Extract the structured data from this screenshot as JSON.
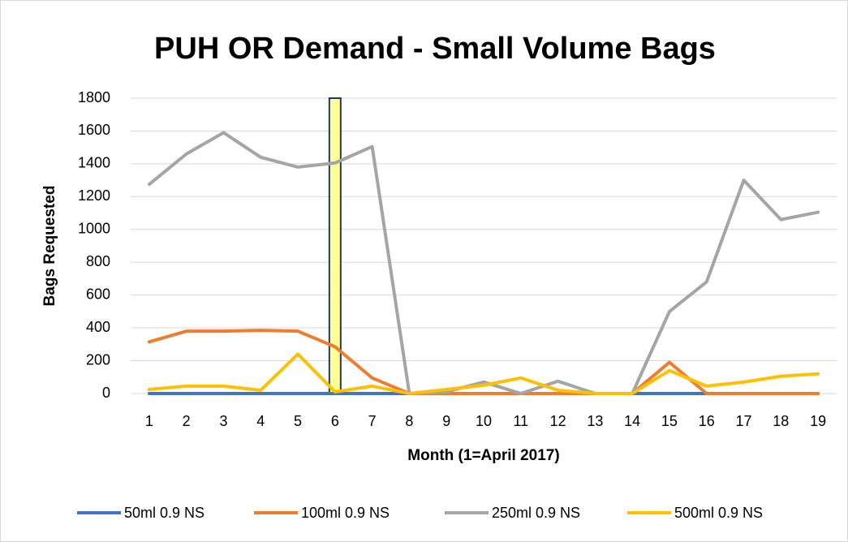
{
  "chart_data": {
    "type": "line",
    "title": "PUH OR Demand - Small Volume Bags",
    "x_label": "Month (1=April 2017)",
    "y_label": "Bags Requested",
    "categories": [
      "1",
      "2",
      "3",
      "4",
      "5",
      "6",
      "7",
      "8",
      "9",
      "10",
      "11",
      "12",
      "13",
      "14",
      "15",
      "16",
      "17",
      "18",
      "19"
    ],
    "series": [
      {
        "name": "50ml 0.9 NS",
        "color": "#4472c4",
        "values": [
          0,
          0,
          0,
          0,
          0,
          0,
          0,
          0,
          0,
          0,
          0,
          0,
          0,
          0,
          0,
          0,
          0,
          0,
          0
        ]
      },
      {
        "name": "100ml 0.9 NS",
        "color": "#ed7d31",
        "values": [
          315,
          380,
          380,
          385,
          380,
          285,
          95,
          0,
          0,
          0,
          0,
          0,
          0,
          0,
          190,
          0,
          0,
          0,
          0
        ]
      },
      {
        "name": "250ml 0.9 NS",
        "color": "#a5a5a5",
        "values": [
          1275,
          1460,
          1590,
          1440,
          1380,
          1405,
          1505,
          0,
          10,
          70,
          0,
          75,
          0,
          0,
          500,
          680,
          1300,
          1060,
          1105
        ]
      },
      {
        "name": "500ml 0.9 NS",
        "color": "#ffc000",
        "values": [
          25,
          45,
          45,
          20,
          240,
          10,
          45,
          0,
          25,
          50,
          95,
          20,
          0,
          0,
          140,
          45,
          70,
          105,
          120
        ]
      }
    ],
    "highlight": "6",
    "ylim": [
      0,
      1800
    ],
    "yticks": [
      0,
      200,
      400,
      600,
      800,
      1000,
      1200,
      1400,
      1600,
      1800
    ],
    "grid": true,
    "legend": "bottom"
  }
}
